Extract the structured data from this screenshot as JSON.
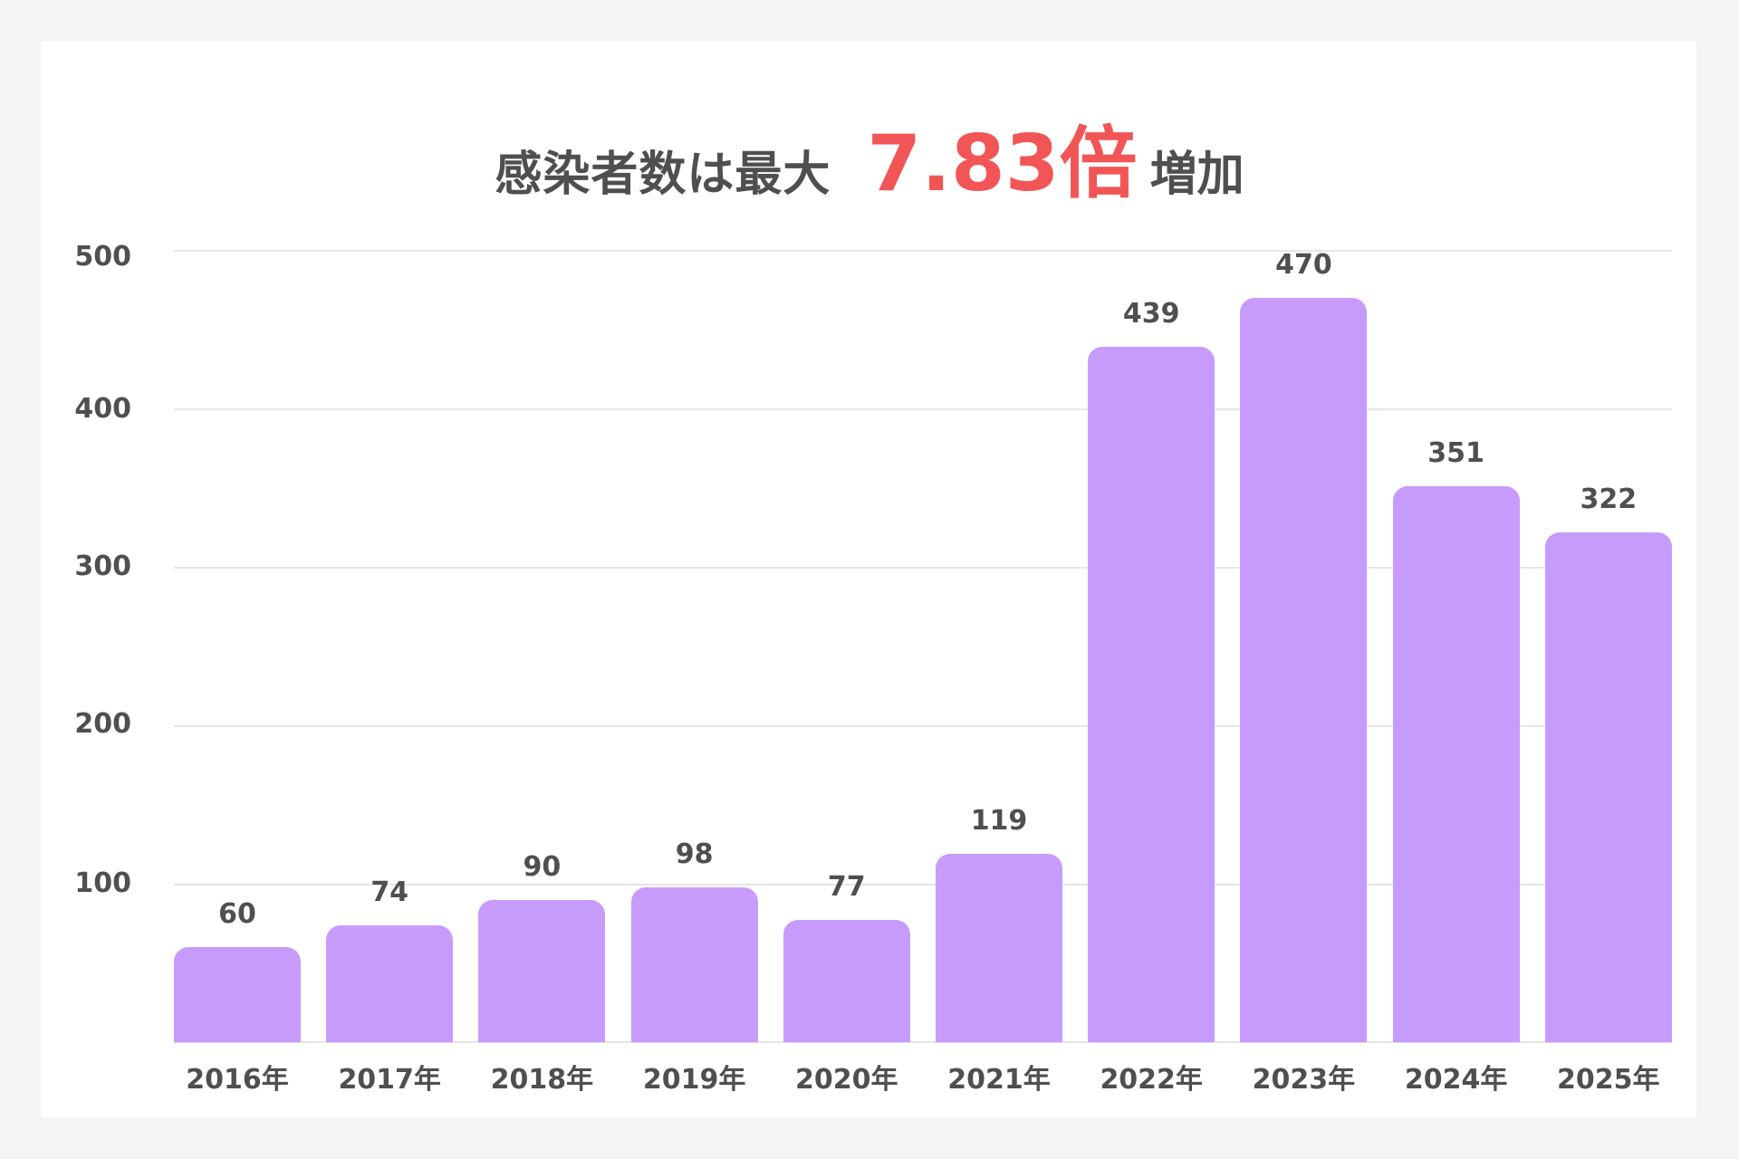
{
  "title": {
    "prefix": "感染者数は最大",
    "highlight": "7.83倍",
    "suffix": "増加",
    "highlight_color": "#F25555",
    "text_color": "#4F4F4F"
  },
  "colors": {
    "bar": "#C79BFB",
    "background": "#F4F4F4",
    "card": "#FFFFFF",
    "gridline": "#E6E6E6"
  },
  "chart_data": {
    "type": "bar",
    "title": "感染者数は最大 7.83倍 増加",
    "xlabel": "",
    "ylabel": "",
    "categories": [
      "2016年",
      "2017年",
      "2018年",
      "2019年",
      "2020年",
      "2021年",
      "2022年",
      "2023年",
      "2024年",
      "2025年"
    ],
    "values": [
      60,
      74,
      90,
      98,
      77,
      119,
      439,
      470,
      351,
      322
    ],
    "value_labels": [
      "60",
      "74",
      "90",
      "98",
      "77",
      "119",
      "439",
      "470",
      "351",
      "322"
    ],
    "yticks": [
      "100",
      "200",
      "300",
      "400",
      "500"
    ],
    "ytick_values": [
      100,
      200,
      300,
      400,
      500
    ],
    "ylim": [
      0,
      500
    ],
    "grid": true,
    "legend": null
  }
}
